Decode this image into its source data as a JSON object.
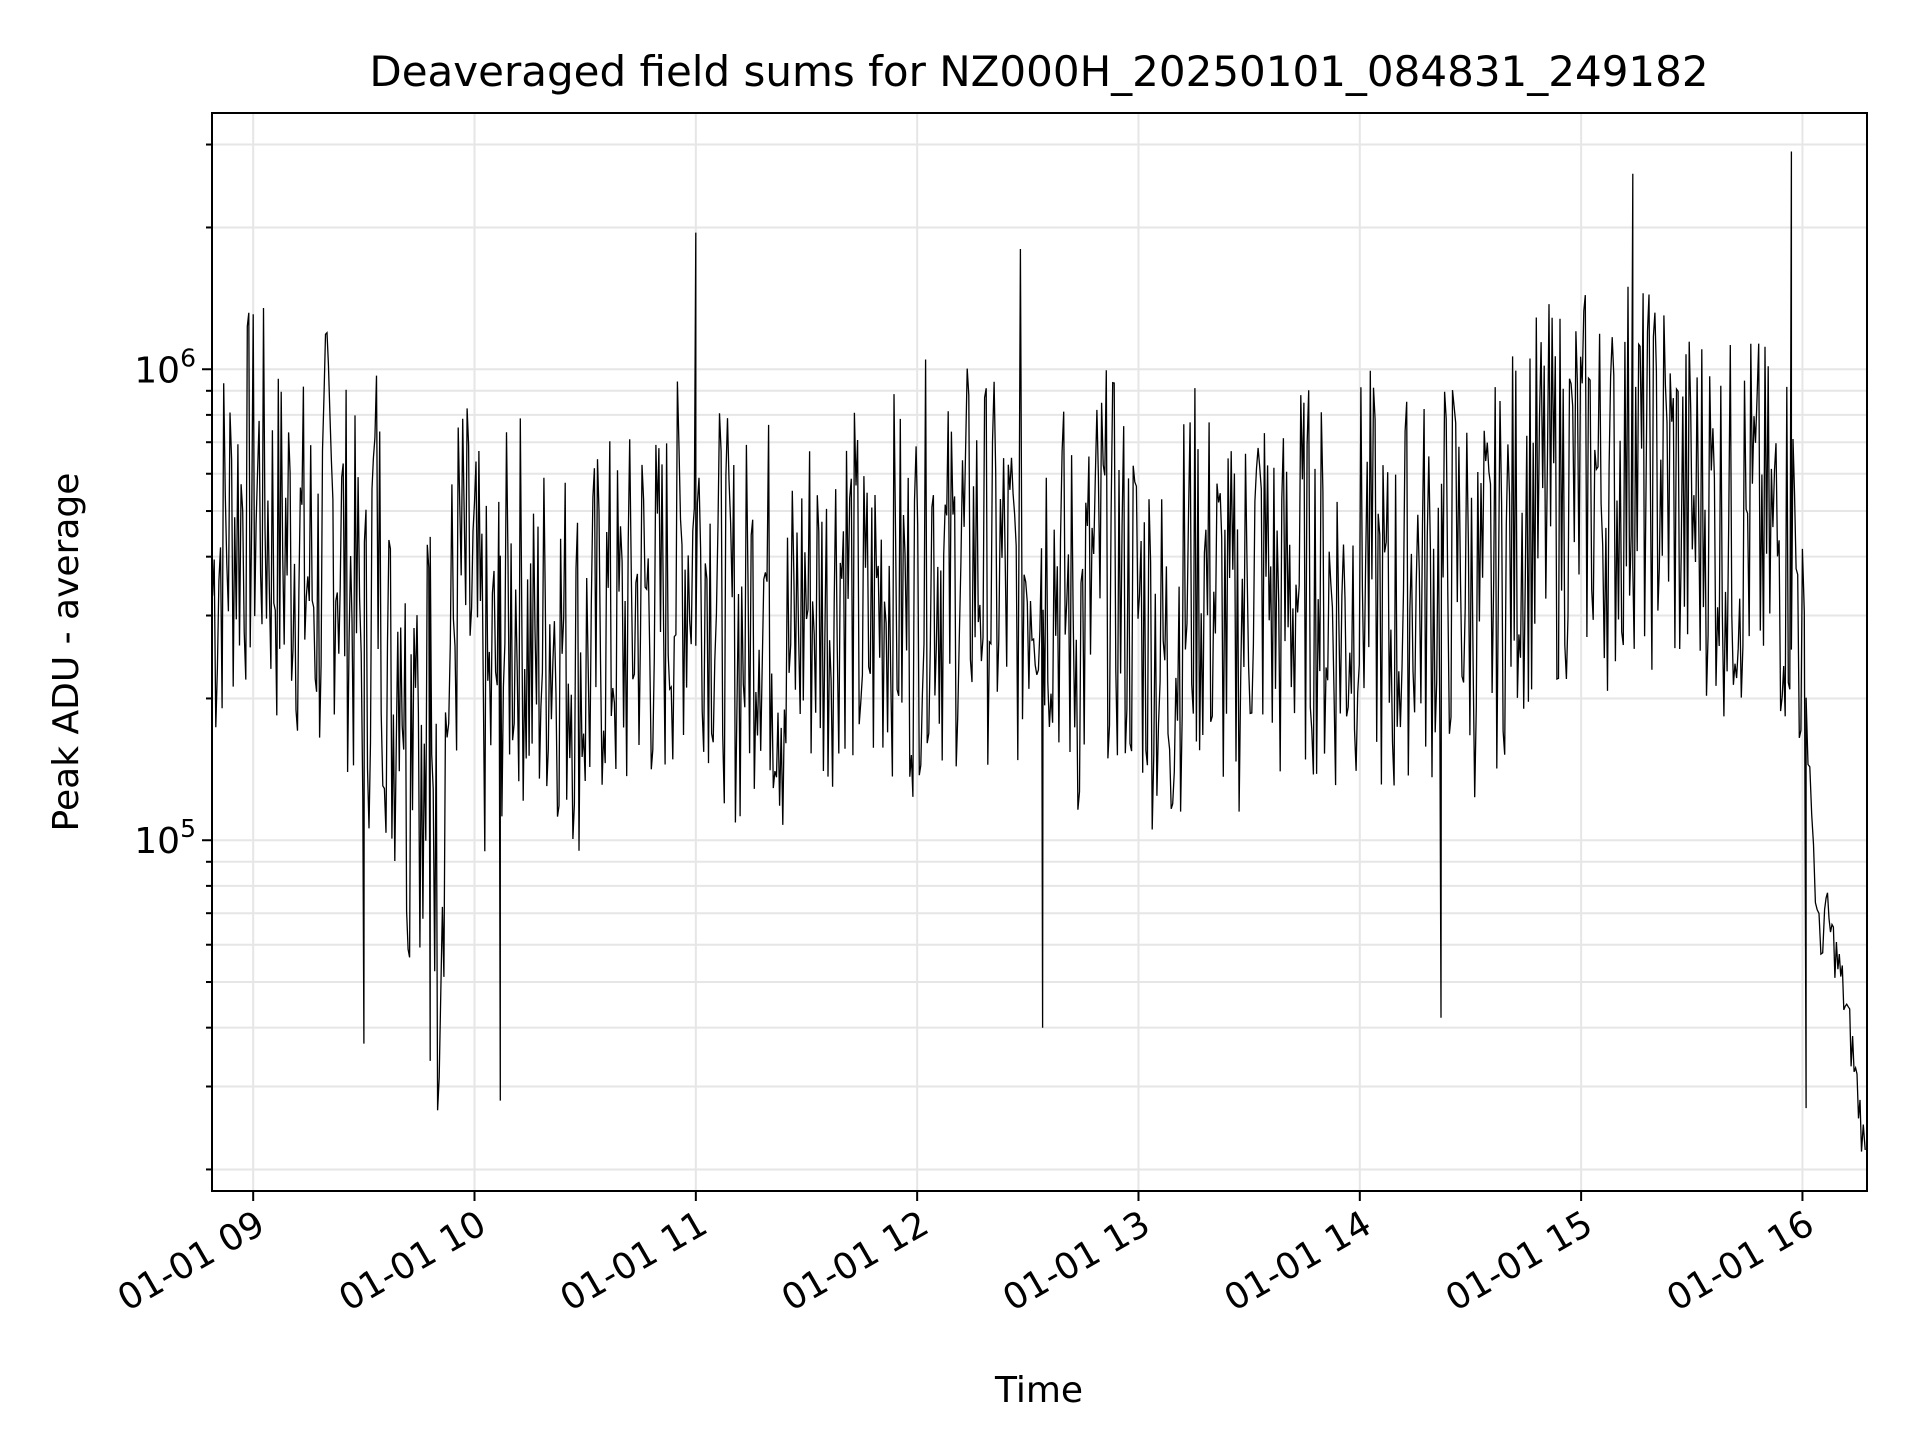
{
  "chart_data": {
    "type": "line",
    "title": "Deaveraged field sums for NZ000H_20250101_084831_249182",
    "xlabel": "Time",
    "ylabel": "Peak ADU - average",
    "yscale": "log",
    "grid": true,
    "legend": "none",
    "xlim": [
      "2025-01-01 08:48:50",
      "2025-01-01 16:17:30"
    ],
    "ylim": [
      18000,
      3500000
    ],
    "xticks": [
      {
        "value": "2025-01-01 09:00",
        "label": "01-01 09"
      },
      {
        "value": "2025-01-01 10:00",
        "label": "01-01 10"
      },
      {
        "value": "2025-01-01 11:00",
        "label": "01-01 11"
      },
      {
        "value": "2025-01-01 12:00",
        "label": "01-01 12"
      },
      {
        "value": "2025-01-01 13:00",
        "label": "01-01 13"
      },
      {
        "value": "2025-01-01 14:00",
        "label": "01-01 14"
      },
      {
        "value": "2025-01-01 15:00",
        "label": "01-01 15"
      },
      {
        "value": "2025-01-01 16:00",
        "label": "01-01 16"
      }
    ],
    "yticks_major": [
      {
        "value": 100000,
        "label_base": "10",
        "label_exp": "5"
      },
      {
        "value": 1000000,
        "label_base": "10",
        "label_exp": "6"
      }
    ],
    "line_color": "#000000",
    "grid_color": "#e6e6e6",
    "series": [
      {
        "x": [
          "2025-01-01 08:49",
          "2025-01-01 08:52",
          "2025-01-01 08:55",
          "2025-01-01 08:58",
          "2025-01-01 09:02",
          "2025-01-01 09:06",
          "2025-01-01 09:10",
          "2025-01-01 09:14",
          "2025-01-01 09:18",
          "2025-01-01 09:20",
          "2025-01-01 09:24",
          "2025-01-01 09:28",
          "2025-01-01 09:31",
          "2025-01-01 09:33",
          "2025-01-01 09:36",
          "2025-01-01 09:38",
          "2025-01-01 09:40",
          "2025-01-01 09:42",
          "2025-01-01 09:44",
          "2025-01-01 09:46",
          "2025-01-01 09:48",
          "2025-01-01 09:50",
          "2025-01-01 09:53",
          "2025-01-01 09:56",
          "2025-01-01 10:00",
          "2025-01-01 10:04",
          "2025-01-01 10:07",
          "2025-01-01 10:12",
          "2025-01-01 10:16",
          "2025-01-01 10:20",
          "2025-01-01 10:25",
          "2025-01-01 10:30",
          "2025-01-01 10:35",
          "2025-01-01 10:40",
          "2025-01-01 10:45",
          "2025-01-01 10:50",
          "2025-01-01 10:55",
          "2025-01-01 11:00",
          "2025-01-01 11:06",
          "2025-01-01 11:12",
          "2025-01-01 11:18",
          "2025-01-01 11:24",
          "2025-01-01 11:30",
          "2025-01-01 11:35",
          "2025-01-01 11:40",
          "2025-01-01 11:46",
          "2025-01-01 11:52",
          "2025-01-01 11:58",
          "2025-01-01 12:04",
          "2025-01-01 12:08",
          "2025-01-01 12:14",
          "2025-01-01 12:20",
          "2025-01-01 12:26",
          "2025-01-01 12:32",
          "2025-01-01 12:38",
          "2025-01-01 12:44",
          "2025-01-01 12:50",
          "2025-01-01 12:56",
          "2025-01-01 13:02",
          "2025-01-01 13:08",
          "2025-01-01 13:14",
          "2025-01-01 13:20",
          "2025-01-01 13:26",
          "2025-01-01 13:32",
          "2025-01-01 13:38",
          "2025-01-01 13:44",
          "2025-01-01 13:50",
          "2025-01-01 13:56",
          "2025-01-01 14:02",
          "2025-01-01 14:08",
          "2025-01-01 14:14",
          "2025-01-01 14:20",
          "2025-01-01 14:26",
          "2025-01-01 14:32",
          "2025-01-01 14:38",
          "2025-01-01 14:44",
          "2025-01-01 14:50",
          "2025-01-01 14:56",
          "2025-01-01 15:02",
          "2025-01-01 15:08",
          "2025-01-01 15:14",
          "2025-01-01 15:18",
          "2025-01-01 15:22",
          "2025-01-01 15:28",
          "2025-01-01 15:34",
          "2025-01-01 15:40",
          "2025-01-01 15:46",
          "2025-01-01 15:52",
          "2025-01-01 15:57",
          "2025-01-01 16:00",
          "2025-01-01 16:01",
          "2025-01-01 16:02",
          "2025-01-01 16:03",
          "2025-01-01 16:04",
          "2025-01-01 16:05",
          "2025-01-01 16:06",
          "2025-01-01 16:08",
          "2025-01-01 16:10",
          "2025-01-01 16:12",
          "2025-01-01 16:14",
          "2025-01-01 16:16",
          "2025-01-01 16:17"
        ],
        "y": [
          450000,
          600000,
          650000,
          700000,
          750000,
          550000,
          600000,
          500000,
          450000,
          700000,
          550000,
          400000,
          300000,
          700000,
          350000,
          250000,
          500000,
          150000,
          600000,
          100000,
          450000,
          80000,
          300000,
          500000,
          400000,
          250000,
          350000,
          450000,
          300000,
          400000,
          350000,
          300000,
          400000,
          350000,
          450000,
          400000,
          500000,
          600000,
          450000,
          350000,
          500000,
          300000,
          450000,
          400000,
          550000,
          350000,
          500000,
          400000,
          600000,
          450000,
          550000,
          500000,
          450000,
          600000,
          500000,
          350000,
          550000,
          450000,
          400000,
          300000,
          500000,
          450000,
          350000,
          550000,
          400000,
          500000,
          450000,
          400000,
          550000,
          350000,
          500000,
          450000,
          550000,
          400000,
          500000,
          650000,
          700000,
          750000,
          800000,
          700000,
          900000,
          750000,
          850000,
          650000,
          700000,
          600000,
          650000,
          550000,
          600000,
          400000,
          200000,
          150000,
          100000,
          70000,
          60000,
          75000,
          65000,
          55000,
          45000,
          35000,
          26000,
          22000
        ],
        "extremes": [
          {
            "x": "2025-01-01 09:30",
            "y": 37000
          },
          {
            "x": "2025-01-01 09:48",
            "y": 34000
          },
          {
            "x": "2025-01-01 10:07",
            "y": 28000
          },
          {
            "x": "2025-01-01 11:00",
            "y": 1950000
          },
          {
            "x": "2025-01-01 12:28",
            "y": 1800000
          },
          {
            "x": "2025-01-01 12:34",
            "y": 40000
          },
          {
            "x": "2025-01-01 14:22",
            "y": 42000
          },
          {
            "x": "2025-01-01 15:14",
            "y": 2600000
          },
          {
            "x": "2025-01-01 15:57",
            "y": 2900000
          },
          {
            "x": "2025-01-01 16:01",
            "y": 27000
          }
        ]
      }
    ]
  }
}
